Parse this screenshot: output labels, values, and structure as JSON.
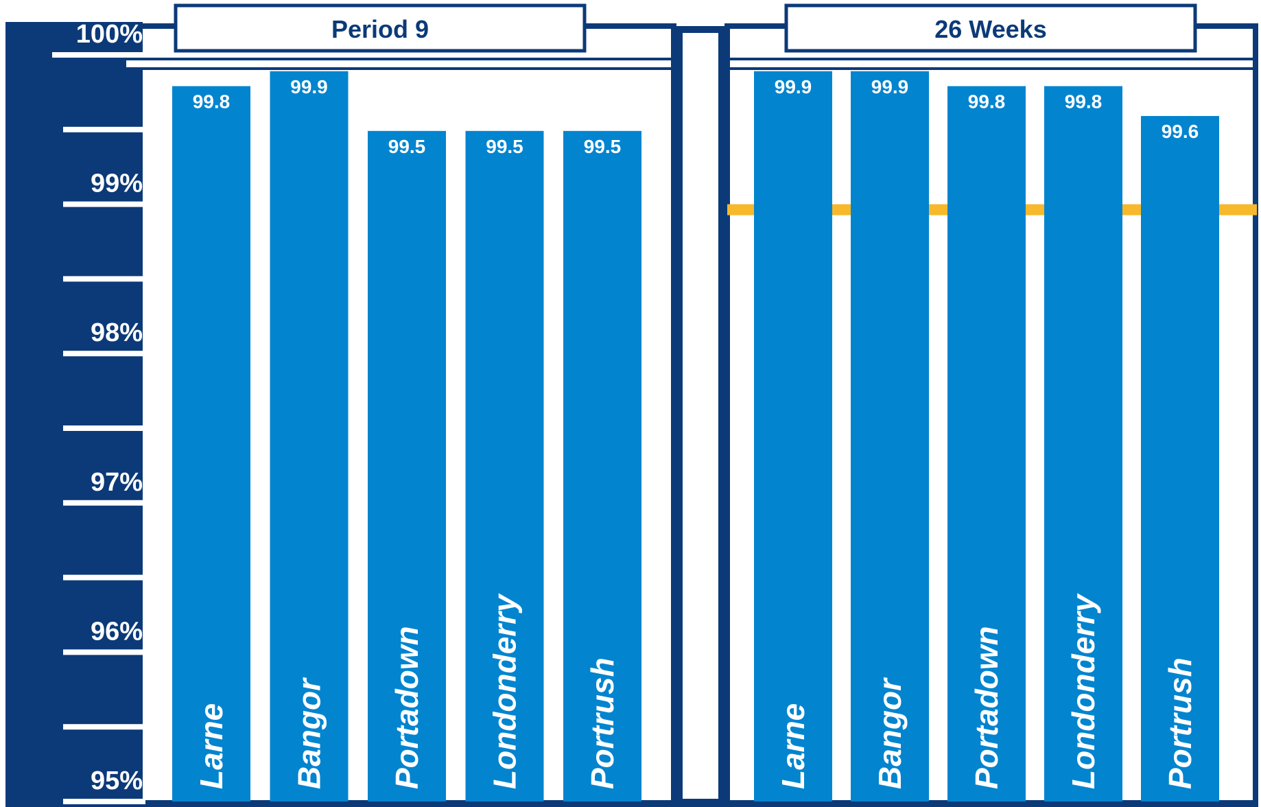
{
  "chart_data": {
    "type": "bar",
    "ylim": [
      95,
      100
    ],
    "y_ticks": [
      "100%",
      "99%",
      "98%",
      "97%",
      "96%",
      "95%"
    ],
    "y_tick_values": [
      100,
      99,
      98,
      97,
      96,
      95
    ],
    "target_line": {
      "value": 99,
      "panels": [
        "26 Weeks"
      ],
      "color": "#f7b92b"
    },
    "panels": [
      {
        "title": "Period 9",
        "categories": [
          "Larne",
          "Bangor",
          "Portadown",
          "Londonderry",
          "Portrush"
        ],
        "values": [
          99.8,
          99.9,
          99.5,
          99.5,
          99.5
        ],
        "value_labels": [
          "99.8",
          "99.9",
          "99.5",
          "99.5",
          "99.5"
        ]
      },
      {
        "title": "26 Weeks",
        "categories": [
          "Larne",
          "Bangor",
          "Portadown",
          "Londonderry",
          "Portrush"
        ],
        "values": [
          99.9,
          99.9,
          99.8,
          99.8,
          99.6
        ],
        "value_labels": [
          "99.9",
          "99.9",
          "99.8",
          "99.8",
          "99.6"
        ]
      }
    ],
    "grid": false,
    "legend": "none"
  },
  "colors": {
    "navy": "#0c3a78",
    "bar": "#0384cf",
    "target": "#f7b92b",
    "background": "#ffffff"
  }
}
